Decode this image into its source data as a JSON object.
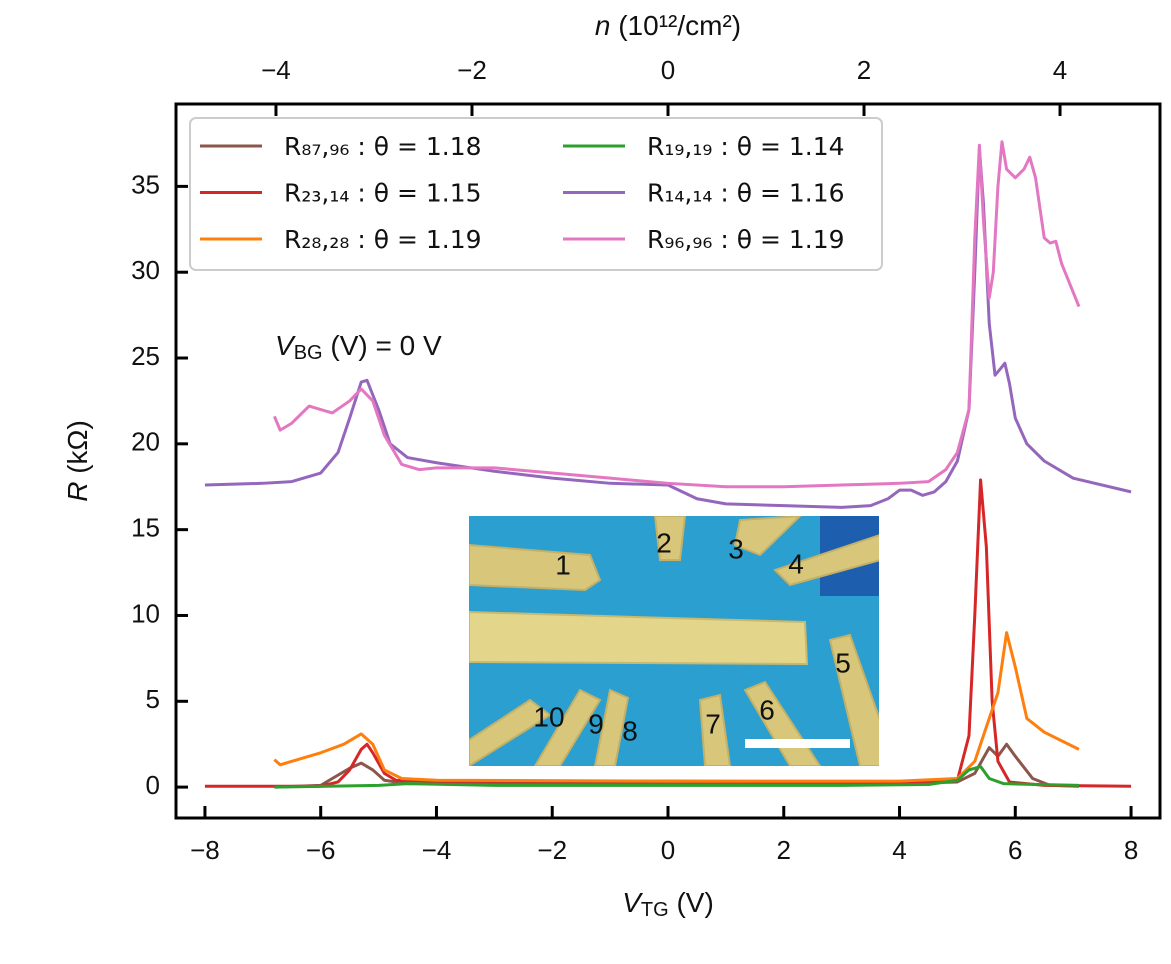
{
  "chart_data": {
    "type": "line",
    "xlabel": {
      "symbol": "V",
      "sub": "TG",
      "rest": " (V)"
    },
    "ylabel": {
      "symbol": "R",
      "rest": " (kΩ)"
    },
    "x2label": {
      "symbol": "n",
      "rest": " (10¹²/cm²)"
    },
    "annotation": {
      "symbol": "V",
      "sub": "BG",
      "rest": " (V) = 0 V"
    },
    "xlim": [
      -8.5,
      8.5
    ],
    "xticks": [
      {
        "value": -8,
        "label": "−8"
      },
      {
        "value": -6,
        "label": "−6"
      },
      {
        "value": -4,
        "label": "−4"
      },
      {
        "value": -2,
        "label": "−2"
      },
      0,
      2,
      4,
      6,
      8
    ],
    "x2lim": [
      -5.02,
      5.02
    ],
    "x2ticks": [
      {
        "value": -4,
        "label": "−4"
      },
      {
        "value": -2,
        "label": "−2"
      },
      0,
      2,
      4
    ],
    "ylim": [
      -1.8,
      39.8
    ],
    "yticks": [
      0,
      5,
      10,
      15,
      20,
      25,
      30,
      35
    ],
    "legend": "upper left",
    "series": [
      {
        "name": "R₈₇,₉₆ : θ = 1.18",
        "color": "#8c564b",
        "x": [
          -6.8,
          -6,
          -5.8,
          -5.5,
          -5.3,
          -5.1,
          -4.9,
          -4.5,
          0,
          4,
          5,
          5.3,
          5.55,
          5.7,
          5.85,
          6,
          6.3,
          6.6,
          7.1
        ],
        "values": [
          0,
          0.1,
          0.5,
          1.1,
          1.4,
          1.0,
          0.4,
          0.2,
          0.25,
          0.2,
          0.3,
          0.8,
          2.3,
          1.8,
          2.5,
          1.8,
          0.5,
          0.1,
          0.05
        ]
      },
      {
        "name": "R₂₃,₁₄ : θ = 1.15",
        "color": "#d62728",
        "x": [
          -8,
          -6,
          -5.7,
          -5.5,
          -5.3,
          -5.2,
          -5.1,
          -4.9,
          -4.7,
          -4,
          0,
          4,
          5,
          5.2,
          5.3,
          5.4,
          5.5,
          5.6,
          5.7,
          5.9,
          6.5,
          8
        ],
        "values": [
          0.05,
          0.05,
          0.3,
          1,
          2.2,
          2.5,
          2,
          0.8,
          0.4,
          0.35,
          0.35,
          0.3,
          0.4,
          3,
          10,
          17.9,
          14,
          5,
          1.5,
          0.3,
          0.1,
          0.05
        ]
      },
      {
        "name": "R₂₈,₂₈ : θ = 1.19",
        "color": "#ff7f0e",
        "x": [
          -6.8,
          -6.7,
          -6.5,
          -6,
          -5.6,
          -5.3,
          -5.1,
          -4.9,
          -4.6,
          -4,
          0,
          4,
          5,
          5.3,
          5.5,
          5.7,
          5.85,
          6,
          6.2,
          6.5,
          7.1
        ],
        "values": [
          1.6,
          1.3,
          1.5,
          2.0,
          2.5,
          3.1,
          2.5,
          1.0,
          0.5,
          0.4,
          0.35,
          0.35,
          0.5,
          1.5,
          3.5,
          5.5,
          9.0,
          7,
          4,
          3.2,
          2.2
        ]
      },
      {
        "name": "R₁₉,₁₉ : θ = 1.14",
        "color": "#2ca02c",
        "x": [
          -6.8,
          -5,
          -4.5,
          -3,
          0,
          3,
          4.5,
          5,
          5.2,
          5.4,
          5.55,
          5.8,
          7.1
        ],
        "values": [
          0,
          0.1,
          0.2,
          0.1,
          0.1,
          0.1,
          0.15,
          0.4,
          1.0,
          1.2,
          0.5,
          0.2,
          0.1
        ]
      },
      {
        "name": "R₁₄,₁₄ : θ = 1.16",
        "color": "#9467bd",
        "x": [
          -8,
          -7,
          -6.5,
          -6,
          -5.7,
          -5.5,
          -5.3,
          -5.2,
          -5,
          -4.8,
          -4.5,
          -4,
          -3,
          -2,
          -1,
          0,
          0.5,
          1,
          2,
          3,
          3.5,
          3.8,
          4,
          4.2,
          4.4,
          4.6,
          4.8,
          5,
          5.2,
          5.3,
          5.38,
          5.45,
          5.55,
          5.65,
          5.75,
          5.82,
          5.9,
          6,
          6.2,
          6.5,
          7,
          8
        ],
        "values": [
          17.6,
          17.7,
          17.8,
          18.3,
          19.5,
          21.5,
          23.6,
          23.7,
          22,
          20,
          19.2,
          18.9,
          18.4,
          18.0,
          17.7,
          17.6,
          16.8,
          16.5,
          16.4,
          16.3,
          16.4,
          16.8,
          17.3,
          17.3,
          17.0,
          17.2,
          17.8,
          19,
          22,
          30,
          37.2,
          34,
          27,
          24,
          24.4,
          24.7,
          23.5,
          21.5,
          20,
          19,
          18,
          17.2
        ]
      },
      {
        "name": "R₉₆,₉₆ : θ = 1.19",
        "color": "#e377c2",
        "x": [
          -6.8,
          -6.7,
          -6.5,
          -6.2,
          -6,
          -5.8,
          -5.5,
          -5.3,
          -5.1,
          -4.9,
          -4.6,
          -4.3,
          -4,
          -3,
          -2,
          -1,
          0,
          1,
          2,
          3,
          4,
          4.5,
          4.8,
          5,
          5.2,
          5.3,
          5.38,
          5.45,
          5.55,
          5.62,
          5.7,
          5.77,
          5.85,
          6,
          6.15,
          6.25,
          6.35,
          6.5,
          6.6,
          6.7,
          6.8,
          7.1
        ],
        "values": [
          21.6,
          20.8,
          21.2,
          22.2,
          22,
          21.8,
          22.5,
          23.2,
          22.5,
          20.5,
          18.8,
          18.5,
          18.6,
          18.6,
          18.3,
          18.0,
          17.7,
          17.5,
          17.5,
          17.6,
          17.7,
          17.8,
          18.5,
          19.5,
          22,
          32,
          37.4,
          33,
          28.5,
          30,
          35,
          37.6,
          36,
          35.5,
          36,
          36.7,
          35.5,
          32,
          31.7,
          31.8,
          30.5,
          28
        ]
      }
    ],
    "inset": {
      "labels": [
        "1",
        "2",
        "3",
        "4",
        "5",
        "6",
        "7",
        "8",
        "9",
        "10"
      ]
    }
  }
}
